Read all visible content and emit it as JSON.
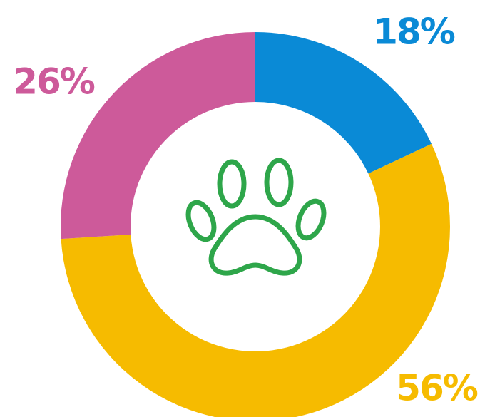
{
  "chart_data": {
    "type": "donut",
    "values": [
      18,
      56,
      26
    ],
    "value_labels": [
      "18%",
      "56%",
      "26%"
    ],
    "colors": [
      "#0a8ad6",
      "#f6bb00",
      "#cd5a9a"
    ]
  }
}
